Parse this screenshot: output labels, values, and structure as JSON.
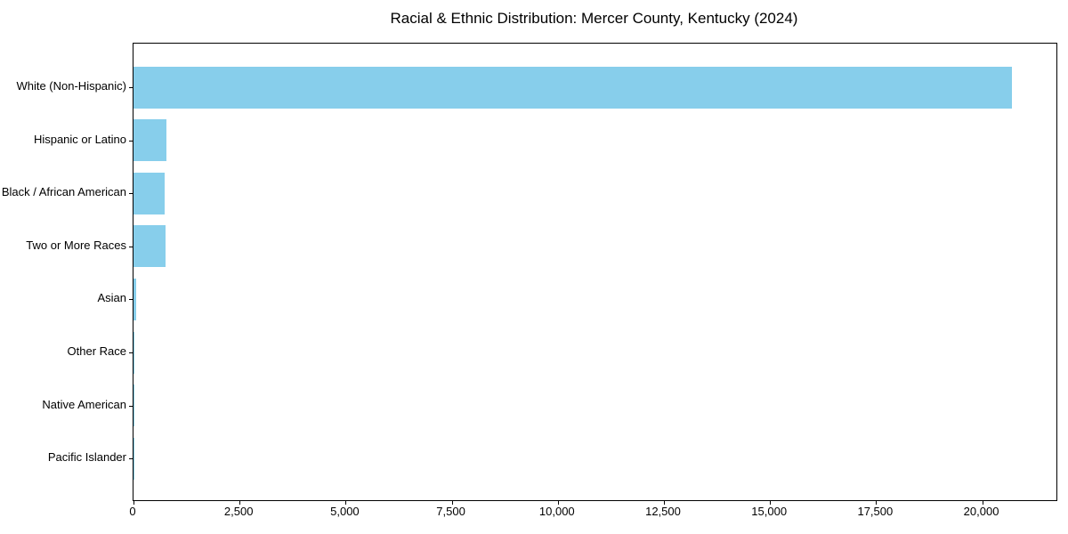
{
  "chart_data": {
    "type": "bar",
    "orientation": "horizontal",
    "title": "Racial & Ethnic Distribution: Mercer County, Kentucky (2024)",
    "categories": [
      "White (Non-Hispanic)",
      "Hispanic or Latino",
      "Black / African American",
      "Two or More Races",
      "Asian",
      "Other Race",
      "Native American",
      "Pacific Islander"
    ],
    "values": [
      20700,
      770,
      730,
      750,
      63,
      30,
      15,
      5
    ],
    "xlabel": "",
    "ylabel": "",
    "xlim": [
      0,
      21750
    ],
    "x_ticks": [
      0,
      2500,
      5000,
      7500,
      10000,
      12500,
      15000,
      17500,
      20000
    ],
    "x_tick_labels": [
      "0",
      "2,500",
      "5,000",
      "7,500",
      "10,000",
      "12,500",
      "15,000",
      "17,500",
      "20,000"
    ],
    "bar_color": "#87CEEB",
    "grid": false,
    "legend": "none"
  },
  "colors": {
    "background": "#ffffff",
    "spine": "#000000",
    "text": "#000000"
  }
}
